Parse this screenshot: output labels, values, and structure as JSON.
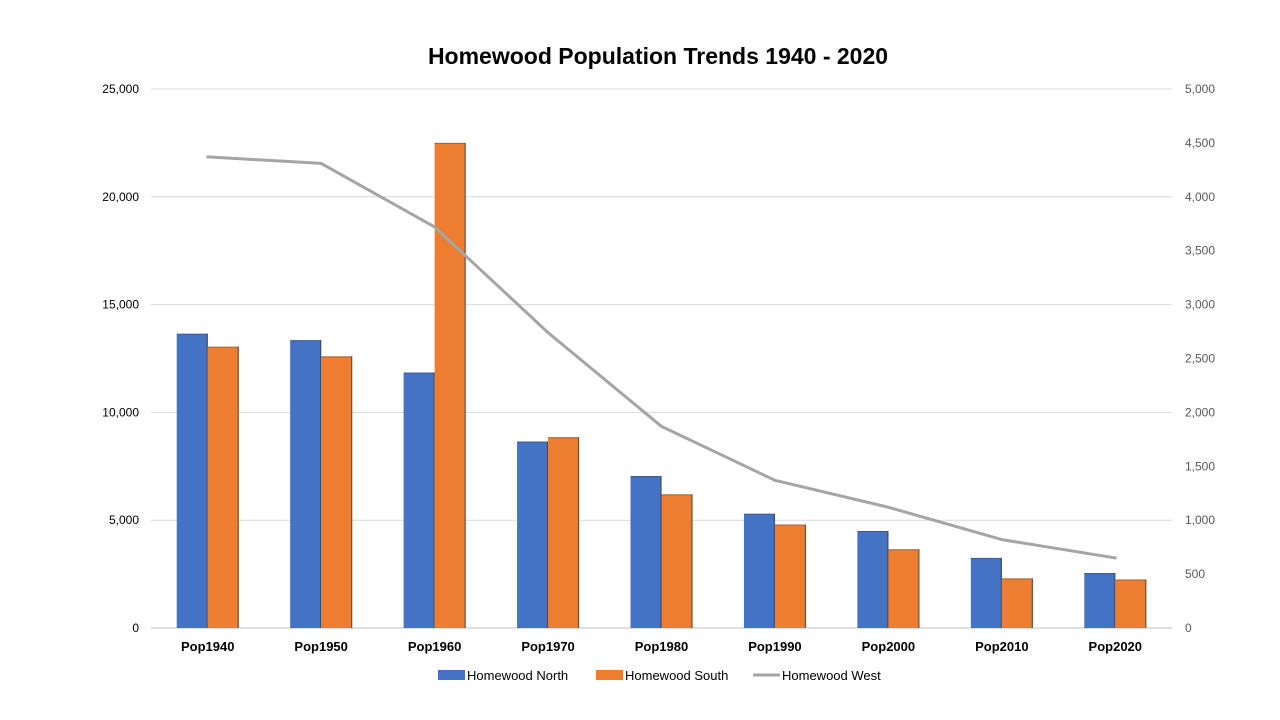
{
  "chart_data": {
    "type": "bar",
    "title": "Homewood Population Trends 1940 - 2020",
    "categories": [
      "Pop1940",
      "Pop1950",
      "Pop1960",
      "Pop1970",
      "Pop1980",
      "Pop1990",
      "Pop2000",
      "Pop2010",
      "Pop2020"
    ],
    "series": [
      {
        "name": "Homewood North",
        "type": "bar",
        "axis": "left",
        "color": "#4472C4",
        "values": [
          13650,
          13350,
          11850,
          8650,
          7050,
          5300,
          4500,
          3250,
          2550
        ]
      },
      {
        "name": "Homewood South",
        "type": "bar",
        "axis": "left",
        "color": "#ED7D31",
        "values": [
          13050,
          12600,
          22500,
          8850,
          6200,
          4800,
          3650,
          2300,
          2250
        ]
      },
      {
        "name": "Homewood West",
        "type": "line",
        "axis": "right",
        "color": "#A5A5A5",
        "values": [
          4370,
          4310,
          3720,
          2740,
          1870,
          1370,
          1120,
          820,
          650
        ]
      }
    ],
    "ylim_left": [
      0,
      25000
    ],
    "ylim_right": [
      0,
      5000
    ],
    "yticks_left": [
      "0",
      "5,000",
      "10,000",
      "15,000",
      "20,000",
      "25,000"
    ],
    "yticks_right": [
      "0",
      "500",
      "1,000",
      "1,500",
      "2,000",
      "2,500",
      "3,000",
      "3,500",
      "4,000",
      "4,500",
      "5,000"
    ],
    "xlabel": "",
    "ylabel": "",
    "grid": true,
    "legend": "bottom-center"
  }
}
